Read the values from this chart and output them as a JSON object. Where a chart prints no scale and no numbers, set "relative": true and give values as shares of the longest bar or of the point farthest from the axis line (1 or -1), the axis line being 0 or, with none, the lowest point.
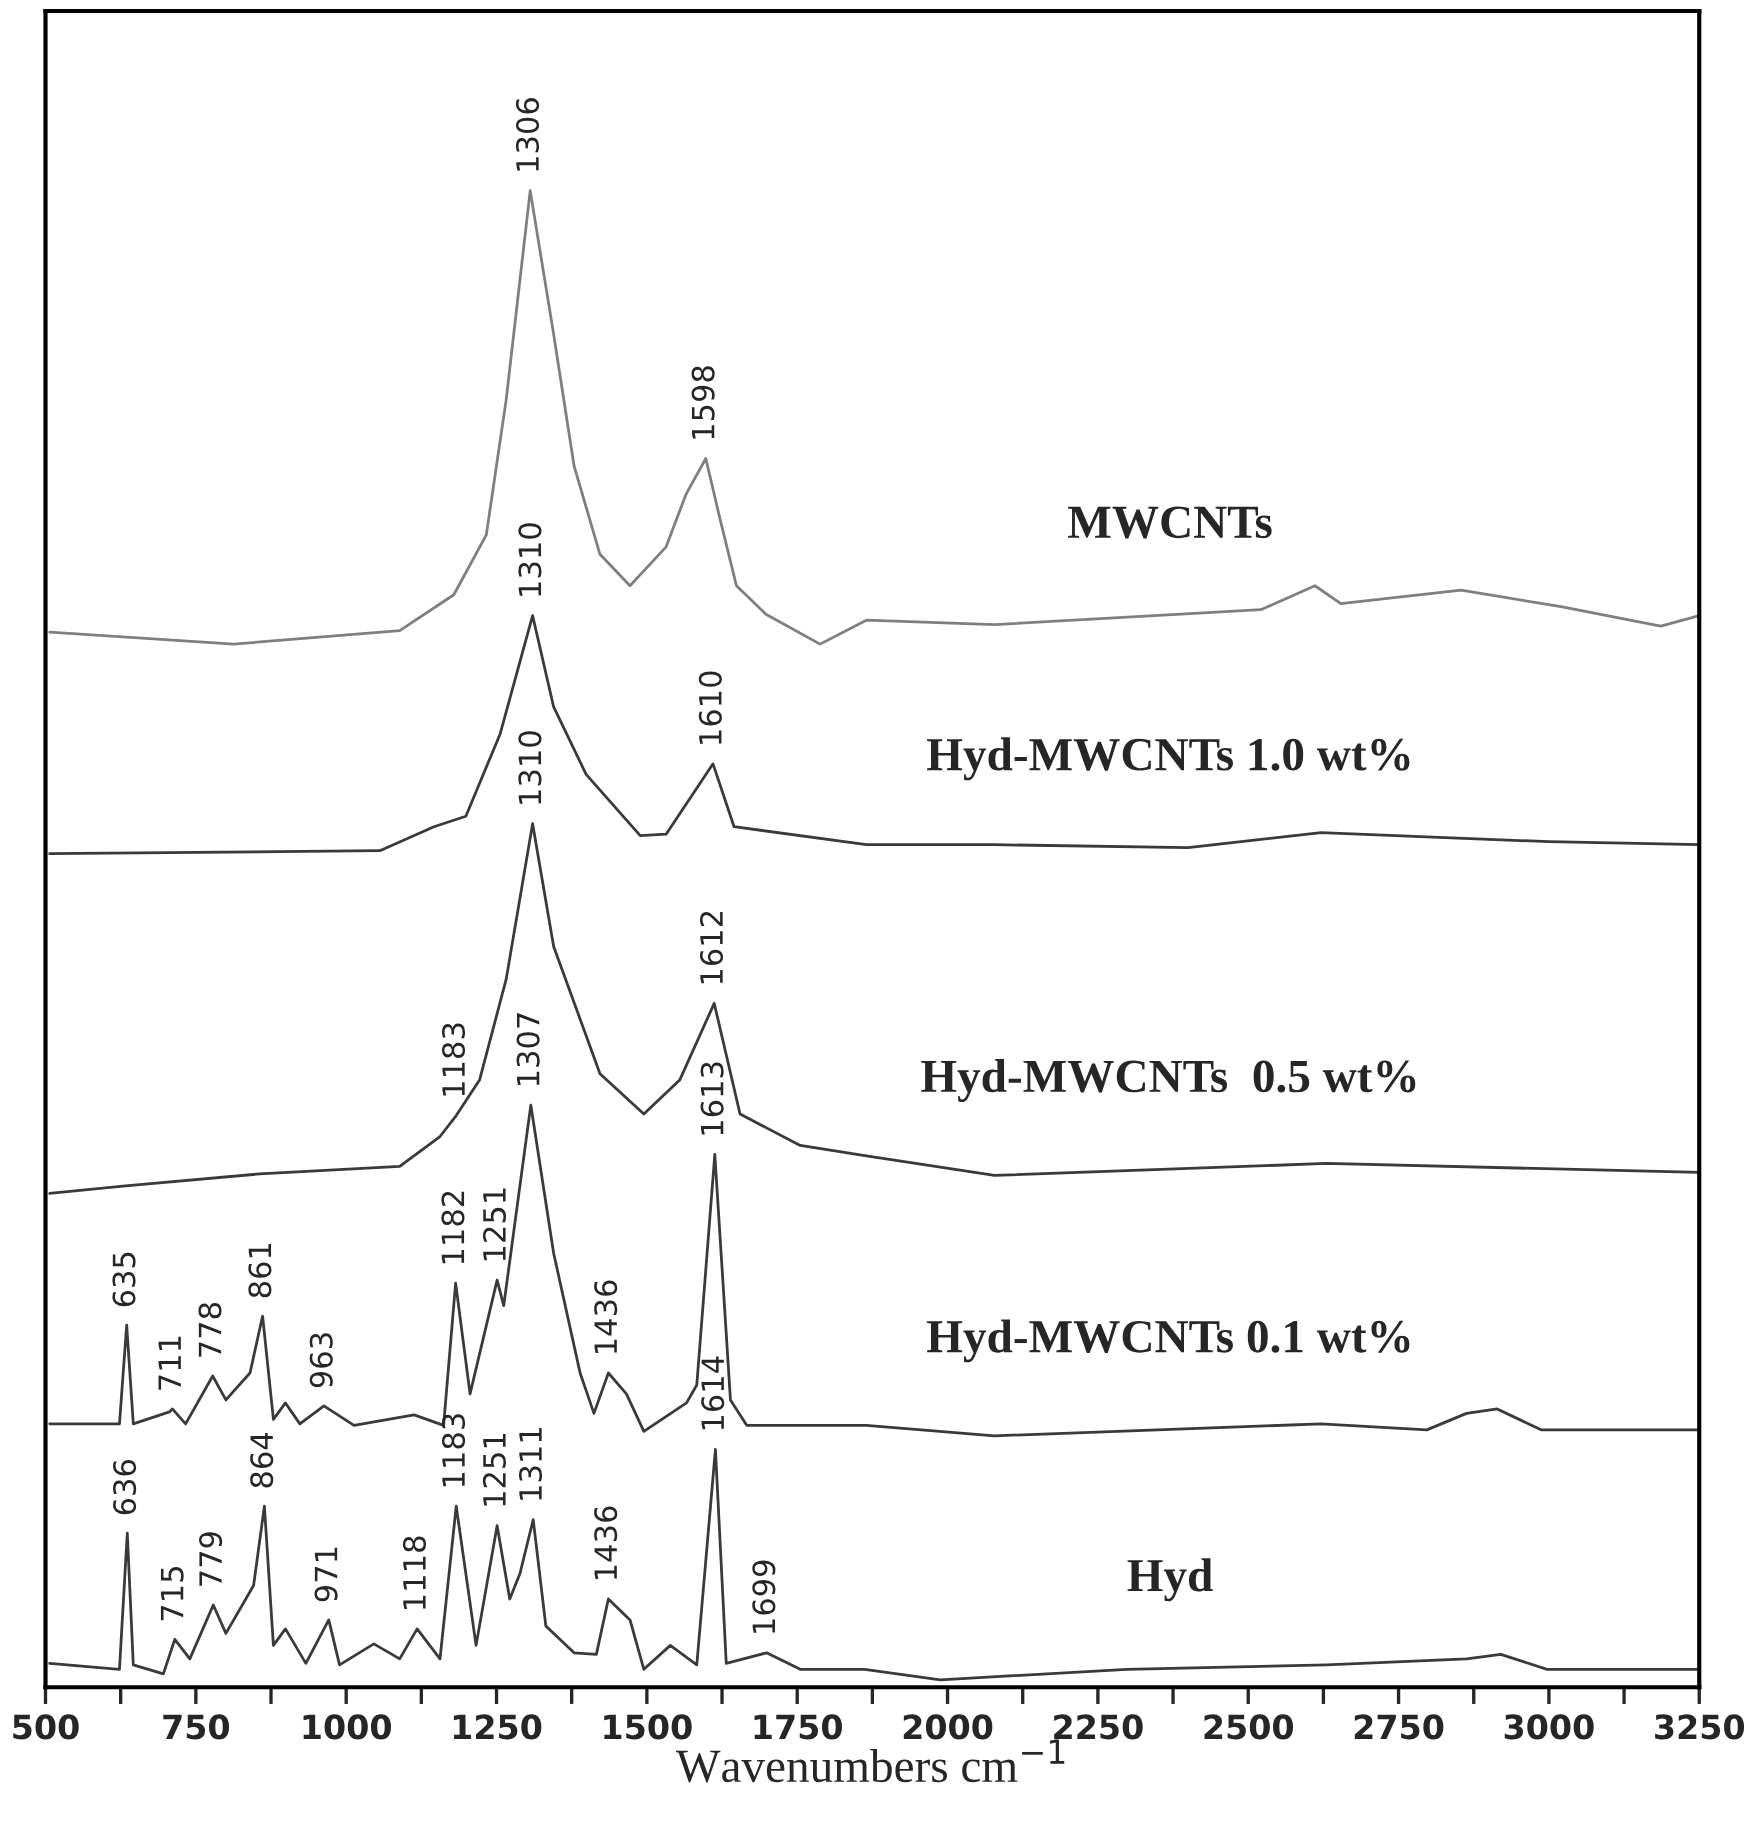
{
  "chart_data": {
    "type": "line",
    "relative": true,
    "xlabel": "Wavenumbers cm$^{−1}$",
    "xlim": [
      500,
      3250
    ],
    "xticks": [
      500,
      {
        "value": 625,
        "label": null
      },
      750,
      {
        "value": 875,
        "label": null
      },
      1000,
      {
        "value": 1125,
        "label": null
      },
      1250,
      {
        "value": 1375,
        "label": null
      },
      1500,
      {
        "value": 1625,
        "label": null
      },
      1750,
      {
        "value": 1875,
        "label": null
      },
      2000,
      {
        "value": 2125,
        "label": null
      },
      2250,
      {
        "value": 2375,
        "label": null
      },
      2500,
      {
        "value": 2625,
        "label": null
      },
      2750,
      {
        "value": 2875,
        "label": null
      },
      3000,
      {
        "value": 3125,
        "label": null
      },
      3250
    ],
    "tick_labels": "x",
    "grid": false,
    "marker": "none",
    "line_style": "solid",
    "series": [
      {
        "name": "MWCNTs",
        "color": "#7f7f7f",
        "x": [
          507,
          813,
          1089,
          1179,
          1233,
          1266,
          1306,
          1345,
          1379,
          1422,
          1472,
          1532,
          1565,
          1598,
          1622,
          1649,
          1698,
          1788,
          1865,
          2078,
          2521,
          2611,
          2654,
          2854,
          3020,
          3186,
          3250
        ],
        "values": [
          0.705,
          0.697,
          0.706,
          0.73,
          0.77,
          0.86,
          1.0,
          0.904,
          0.816,
          0.757,
          0.736,
          0.762,
          0.797,
          0.821,
          0.78,
          0.736,
          0.717,
          0.697,
          0.713,
          0.71,
          0.72,
          0.736,
          0.724,
          0.733,
          0.722,
          0.709,
          0.716
        ]
      },
      {
        "name": "Hyd-MWCNTs 1.0 wt%",
        "color": "#3a3a3a",
        "x": [
          507,
          1056,
          1146,
          1199,
          1256,
          1310,
          1345,
          1399,
          1489,
          1532,
          1610,
          1645,
          1865,
          2078,
          2400,
          2621,
          3000,
          3250
        ],
        "values": [
          0.557,
          0.559,
          0.575,
          0.582,
          0.637,
          0.716,
          0.655,
          0.61,
          0.569,
          0.57,
          0.617,
          0.575,
          0.563,
          0.563,
          0.561,
          0.571,
          0.565,
          0.563
        ]
      },
      {
        "name": "Hyd-MWCNTs  0.5 wt%",
        "color": "#3a3a3a",
        "x": [
          507,
          633,
          856,
          1089,
          1156,
          1183,
          1222,
          1266,
          1310,
          1345,
          1422,
          1495,
          1555,
          1612,
          1655,
          1755,
          1865,
          2078,
          2630,
          3250
        ],
        "values": [
          0.33,
          0.335,
          0.343,
          0.348,
          0.368,
          0.382,
          0.406,
          0.473,
          0.577,
          0.495,
          0.41,
          0.383,
          0.406,
          0.457,
          0.383,
          0.362,
          0.355,
          0.342,
          0.35,
          0.344
        ]
      },
      {
        "name": "Hyd-MWCNTs 0.1 wt%",
        "color": "#3a3a3a",
        "x": [
          507,
          623,
          635,
          646,
          706,
          711,
          733,
          778,
          800,
          840,
          861,
          879,
          899,
          923,
          963,
          1013,
          1113,
          1162,
          1182,
          1206,
          1251,
          1262,
          1307,
          1345,
          1389,
          1412,
          1436,
          1466,
          1495,
          1566,
          1583,
          1613,
          1639,
          1666,
          1865,
          2078,
          2621,
          2797,
          2863,
          2914,
          2987,
          3250
        ],
        "values": [
          0.176,
          0.176,
          0.242,
          0.176,
          0.184,
          0.186,
          0.176,
          0.208,
          0.192,
          0.21,
          0.248,
          0.179,
          0.19,
          0.176,
          0.188,
          0.175,
          0.182,
          0.175,
          0.27,
          0.196,
          0.272,
          0.255,
          0.389,
          0.29,
          0.21,
          0.183,
          0.21,
          0.196,
          0.171,
          0.19,
          0.202,
          0.356,
          0.192,
          0.175,
          0.175,
          0.168,
          0.176,
          0.172,
          0.183,
          0.186,
          0.172,
          0.172
        ]
      },
      {
        "name": "Hyd",
        "color": "#3a3a3a",
        "x": [
          507,
          623,
          636,
          646,
          696,
          715,
          740,
          779,
          800,
          846,
          864,
          879,
          899,
          933,
          971,
          989,
          1046,
          1089,
          1118,
          1156,
          1183,
          1216,
          1251,
          1272,
          1289,
          1311,
          1332,
          1379,
          1416,
          1436,
          1472,
          1495,
          1539,
          1583,
          1614,
          1632,
          1699,
          1755,
          1862,
          1988,
          2298,
          2630,
          2863,
          2920,
          2997,
          3250
        ],
        "values": [
          0.016,
          0.012,
          0.103,
          0.015,
          0.009,
          0.032,
          0.019,
          0.055,
          0.036,
          0.068,
          0.121,
          0.028,
          0.039,
          0.016,
          0.045,
          0.015,
          0.029,
          0.019,
          0.039,
          0.019,
          0.121,
          0.028,
          0.108,
          0.059,
          0.076,
          0.112,
          0.041,
          0.023,
          0.022,
          0.059,
          0.045,
          0.012,
          0.028,
          0.015,
          0.159,
          0.016,
          0.023,
          0.012,
          0.012,
          0.005,
          0.012,
          0.015,
          0.019,
          0.022,
          0.012,
          0.012
        ]
      }
    ],
    "annotations": [
      {
        "text": "1306",
        "x": 1306,
        "y": 1.0
      },
      {
        "text": "1598",
        "x": 1598,
        "y": 0.821
      },
      {
        "text": "1310",
        "x": 1310,
        "y": 0.716
      },
      {
        "text": "1610",
        "x": 1610,
        "y": 0.617
      },
      {
        "text": "1310",
        "x": 1310,
        "y": 0.577
      },
      {
        "text": "1183",
        "x": 1183,
        "y": 0.382
      },
      {
        "text": "1612",
        "x": 1612,
        "y": 0.457
      },
      {
        "text": "1307",
        "x": 1307,
        "y": 0.389
      },
      {
        "text": "1613",
        "x": 1613,
        "y": 0.356
      },
      {
        "text": "635",
        "x": 635,
        "y": 0.242
      },
      {
        "text": "711",
        "x": 711,
        "y": 0.186
      },
      {
        "text": "778",
        "x": 778,
        "y": 0.208
      },
      {
        "text": "861",
        "x": 861,
        "y": 0.248
      },
      {
        "text": "963",
        "x": 963,
        "y": 0.188
      },
      {
        "text": "1182",
        "x": 1182,
        "y": 0.27
      },
      {
        "text": "1251",
        "x": 1251,
        "y": 0.272
      },
      {
        "text": "1436",
        "x": 1436,
        "y": 0.21
      },
      {
        "text": "636",
        "x": 636,
        "y": 0.103
      },
      {
        "text": "715",
        "x": 715,
        "y": 0.032
      },
      {
        "text": "779",
        "x": 779,
        "y": 0.055
      },
      {
        "text": "864",
        "x": 864,
        "y": 0.121
      },
      {
        "text": "971",
        "x": 971,
        "y": 0.045
      },
      {
        "text": "1118",
        "x": 1118,
        "y": 0.039
      },
      {
        "text": "1183",
        "x": 1183,
        "y": 0.121
      },
      {
        "text": "1251",
        "x": 1251,
        "y": 0.108
      },
      {
        "text": "1311",
        "x": 1311,
        "y": 0.112
      },
      {
        "text": "1436",
        "x": 1436,
        "y": 0.059
      },
      {
        "text": "1614",
        "x": 1614,
        "y": 0.159
      },
      {
        "text": "1699",
        "x": 1699,
        "y": 0.023
      }
    ]
  }
}
